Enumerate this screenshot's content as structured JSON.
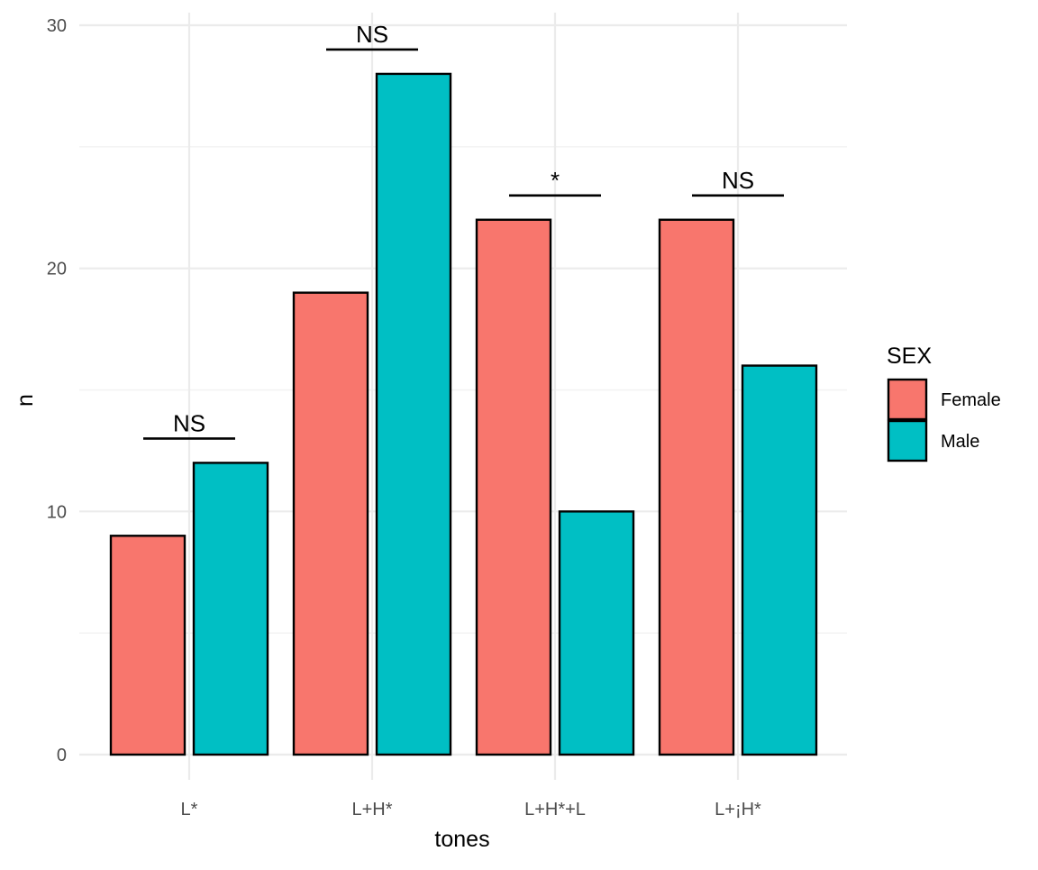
{
  "chart_data": {
    "type": "bar",
    "title": "",
    "xlabel": "tones",
    "ylabel": "n",
    "categories": [
      "L*",
      "L+H*",
      "L+H*+L",
      "L+¡H*"
    ],
    "series": [
      {
        "name": "Female",
        "values": [
          9,
          19,
          22,
          22
        ],
        "color": "#F8766D"
      },
      {
        "name": "Male",
        "values": [
          12,
          28,
          10,
          16
        ],
        "color": "#00BFC4"
      }
    ],
    "ylim": [
      0,
      30
    ],
    "y_ticks": [
      0,
      10,
      20,
      30
    ],
    "y_tick_labels": [
      "0",
      "10",
      "20",
      "30"
    ],
    "grid": true,
    "legend": {
      "title": "SEX",
      "position": "right",
      "items": [
        "Female",
        "Male"
      ]
    },
    "annotations": [
      {
        "category": "L*",
        "label": "NS",
        "y": 13
      },
      {
        "category": "L+H*",
        "label": "NS",
        "y": 29
      },
      {
        "category": "L+H*+L",
        "label": "*",
        "y": 23
      },
      {
        "category": "L+¡H*",
        "label": "NS",
        "y": 23
      }
    ]
  }
}
